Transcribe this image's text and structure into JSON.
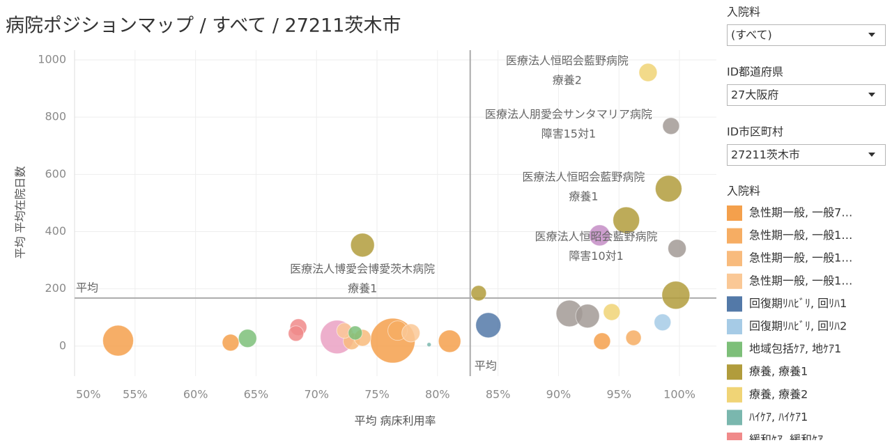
{
  "chart_data": {
    "type": "bubble",
    "title": "病院ポジションマップ / すべて / 27211茨木市",
    "x_label": "平均 病床利用率",
    "y_label": "平均 平均在院日数",
    "xlim": [
      50,
      103.05
    ],
    "ylim": [
      -105,
      1034
    ],
    "xticks": [
      {
        "value": 50,
        "label": "50%"
      },
      {
        "value": 55,
        "label": "55%"
      },
      {
        "value": 60,
        "label": "60%"
      },
      {
        "value": 65,
        "label": "65%"
      },
      {
        "value": 70,
        "label": "70%"
      },
      {
        "value": 75,
        "label": "75%"
      },
      {
        "value": 80,
        "label": "80%"
      },
      {
        "value": 85,
        "label": "85%"
      },
      {
        "value": 90,
        "label": "90%"
      },
      {
        "value": 95,
        "label": "95%"
      },
      {
        "value": 100,
        "label": "100%"
      }
    ],
    "yticks": [
      0,
      200,
      400,
      600,
      800,
      1000
    ],
    "grid": true,
    "reference_lines": [
      {
        "axis": "x",
        "value": 82.7,
        "label": "平均"
      },
      {
        "axis": "y",
        "value": 168,
        "label": "平均"
      }
    ],
    "legend_title": "入院料",
    "series": [
      {
        "color": "#eaa1c3",
        "x": [
          71.7
        ],
        "values": [
          32
        ],
        "sizes": [
          576
        ]
      },
      {
        "color": "#a29a95",
        "x": [
          90.9,
          92.4,
          99.3,
          99.8
        ],
        "values": [
          114,
          105,
          769,
          341
        ],
        "sizes": [
          361,
          289,
          144,
          169
        ],
        "labels": [
          null,
          null,
          [
            "医療法人朋愛会サンタマリア病院",
            "障害15対1"
          ],
          [
            "医療法人恒昭会藍野病院",
            "障害10対1"
          ]
        ]
      },
      {
        "color": "#c48dc6",
        "x": [
          93.4
        ],
        "values": [
          387
        ],
        "sizes": [
          225
        ]
      },
      {
        "name": "急性期一般, 一般7…",
        "color": "#f4a04c",
        "x": [
          53.6,
          62.9,
          76.3,
          81.0,
          93.6
        ],
        "values": [
          19,
          12,
          19,
          17,
          17
        ],
        "sizes": [
          484,
          144,
          1024,
          256,
          144
        ]
      },
      {
        "name": "急性期一般, 一般1…",
        "color": "#f6ad63",
        "x": [
          76.7,
          96.2
        ],
        "values": [
          54,
          29
        ],
        "sizes": [
          196,
          121
        ]
      },
      {
        "name": "急性期一般, 一般1…",
        "color": "#f8bb7d",
        "x": [
          72.9,
          73.8
        ],
        "values": [
          17,
          29
        ],
        "sizes": [
          144,
          144
        ]
      },
      {
        "name": "急性期一般, 一般1…",
        "color": "#fac896",
        "x": [
          72.3,
          77.8
        ],
        "values": [
          54,
          46
        ],
        "sizes": [
          121,
          169
        ]
      },
      {
        "name": "回復期ﾘﾊﾋﾞﾘ, 回ﾘﾊ1",
        "color": "#5379a8",
        "x": [
          84.2
        ],
        "values": [
          73
        ],
        "sizes": [
          324
        ]
      },
      {
        "name": "回復期ﾘﾊﾋﾞﾘ, 回ﾘﾊ2",
        "color": "#a6cbe6",
        "x": [
          98.6
        ],
        "values": [
          83
        ],
        "sizes": [
          144
        ]
      },
      {
        "name": "地域包括ｹｱ, 地ｹｱ1",
        "color": "#7dbf79",
        "x": [
          64.3,
          73.2
        ],
        "values": [
          27,
          46
        ],
        "sizes": [
          169,
          100
        ]
      },
      {
        "name": "療養, 療養1",
        "color": "#b19c3c",
        "x": [
          73.8,
          83.4,
          95.6,
          99.1,
          99.7
        ],
        "values": [
          353,
          185,
          440,
          550,
          178
        ],
        "sizes": [
          289,
          121,
          361,
          361,
          400
        ],
        "labels": [
          [
            "医療法人博愛会博愛茨木病院",
            "療養1"
          ],
          null,
          null,
          [
            "医療法人恒昭会藍野病院",
            "療養1"
          ],
          null
        ]
      },
      {
        "name": "療養, 療養2",
        "color": "#f0d476",
        "x": [
          94.4,
          97.4
        ],
        "values": [
          119,
          956
        ],
        "sizes": [
          144,
          169
        ],
        "labels": [
          null,
          [
            "医療法人恒昭会藍野病院",
            "療養2"
          ]
        ]
      },
      {
        "name": "ﾊｲｹｱ, ﾊｲｹｱ1",
        "color": "#7ab7ae",
        "x": [
          79.3
        ],
        "values": [
          5
        ],
        "sizes": [
          9
        ]
      },
      {
        "name": "緩和ｹｱ, 緩和ｹｱ",
        "color": "#f08a8a",
        "x": [
          68.5,
          68.3
        ],
        "values": [
          66,
          44
        ],
        "sizes": [
          144,
          121
        ]
      }
    ]
  },
  "filters": [
    {
      "label": "入院料",
      "value": "(すべて)"
    },
    {
      "label": "ID都道府県",
      "value": "27大阪府"
    },
    {
      "label": "ID市区町村",
      "value": "27211茨木市"
    }
  ]
}
